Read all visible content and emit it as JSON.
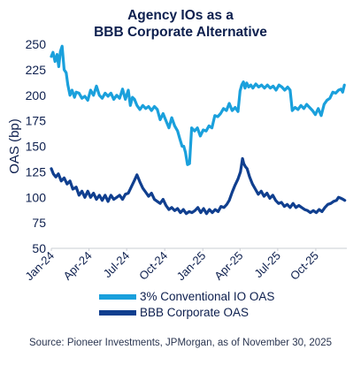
{
  "chart_data": {
    "type": "line",
    "title_lines": [
      "Agency IOs as a",
      "BBB Corporate Alternative"
    ],
    "ylabel": "OAS (bp)",
    "xlabel": "",
    "ylim": [
      50,
      250
    ],
    "yticks": [
      50,
      75,
      100,
      125,
      150,
      175,
      200,
      225,
      250
    ],
    "xlim": [
      "2024-01-01",
      "2025-12-15"
    ],
    "xtick_labels": [
      "Jan-24",
      "Apr-24",
      "Jul-24",
      "Oct-24",
      "Jan-25",
      "Apr-25",
      "Jul-25",
      "Oct-25"
    ],
    "xtick_dates": [
      "2024-01-01",
      "2024-04-01",
      "2024-07-01",
      "2024-10-01",
      "2025-01-01",
      "2025-04-01",
      "2025-07-01",
      "2025-10-01"
    ],
    "grid": false,
    "legend_position": "bottom",
    "source": "Source: Pioneer Investments, JPMorgan, as of November 30, 2025",
    "series": [
      {
        "name": "3% Conventional IO OAS",
        "color": "#1aa0dc",
        "points": [
          [
            "2024-01-01",
            238
          ],
          [
            "2024-01-05",
            242
          ],
          [
            "2024-01-10",
            233
          ],
          [
            "2024-01-15",
            240
          ],
          [
            "2024-01-19",
            228
          ],
          [
            "2024-01-23",
            243
          ],
          [
            "2024-01-27",
            248
          ],
          [
            "2024-02-01",
            225
          ],
          [
            "2024-02-06",
            222
          ],
          [
            "2024-02-10",
            210
          ],
          [
            "2024-02-15",
            200
          ],
          [
            "2024-02-20",
            205
          ],
          [
            "2024-02-26",
            198
          ],
          [
            "2024-03-01",
            203
          ],
          [
            "2024-03-08",
            202
          ],
          [
            "2024-03-15",
            197
          ],
          [
            "2024-03-22",
            199
          ],
          [
            "2024-03-29",
            195
          ],
          [
            "2024-04-05",
            205
          ],
          [
            "2024-04-12",
            200
          ],
          [
            "2024-04-19",
            209
          ],
          [
            "2024-04-26",
            200
          ],
          [
            "2024-05-03",
            197
          ],
          [
            "2024-05-10",
            202
          ],
          [
            "2024-05-17",
            199
          ],
          [
            "2024-05-24",
            202
          ],
          [
            "2024-05-31",
            196
          ],
          [
            "2024-06-07",
            200
          ],
          [
            "2024-06-14",
            197
          ],
          [
            "2024-06-21",
            206
          ],
          [
            "2024-06-28",
            196
          ],
          [
            "2024-07-05",
            205
          ],
          [
            "2024-07-10",
            190
          ],
          [
            "2024-07-15",
            198
          ],
          [
            "2024-07-20",
            196
          ],
          [
            "2024-07-26",
            190
          ],
          [
            "2024-08-02",
            186
          ],
          [
            "2024-08-09",
            190
          ],
          [
            "2024-08-16",
            187
          ],
          [
            "2024-08-23",
            189
          ],
          [
            "2024-08-30",
            185
          ],
          [
            "2024-09-06",
            189
          ],
          [
            "2024-09-13",
            186
          ],
          [
            "2024-09-20",
            176
          ],
          [
            "2024-09-27",
            182
          ],
          [
            "2024-10-04",
            175
          ],
          [
            "2024-10-11",
            168
          ],
          [
            "2024-10-18",
            178
          ],
          [
            "2024-10-25",
            170
          ],
          [
            "2024-11-01",
            165
          ],
          [
            "2024-11-06",
            158
          ],
          [
            "2024-11-12",
            150
          ],
          [
            "2024-11-16",
            150
          ],
          [
            "2024-11-20",
            144
          ],
          [
            "2024-11-25",
            132
          ],
          [
            "2024-11-30",
            133
          ],
          [
            "2024-12-05",
            168
          ],
          [
            "2024-12-12",
            165
          ],
          [
            "2024-12-19",
            168
          ],
          [
            "2024-12-26",
            160
          ],
          [
            "2025-01-02",
            166
          ],
          [
            "2025-01-09",
            165
          ],
          [
            "2025-01-16",
            170
          ],
          [
            "2025-01-23",
            168
          ],
          [
            "2025-01-30",
            180
          ],
          [
            "2025-02-06",
            179
          ],
          [
            "2025-02-13",
            182
          ],
          [
            "2025-02-20",
            187
          ],
          [
            "2025-02-27",
            185
          ],
          [
            "2025-03-06",
            192
          ],
          [
            "2025-03-13",
            185
          ],
          [
            "2025-03-20",
            188
          ],
          [
            "2025-03-27",
            184
          ],
          [
            "2025-04-01",
            204
          ],
          [
            "2025-04-05",
            210
          ],
          [
            "2025-04-09",
            213
          ],
          [
            "2025-04-13",
            207
          ],
          [
            "2025-04-17",
            212
          ],
          [
            "2025-04-22",
            208
          ],
          [
            "2025-04-27",
            210
          ],
          [
            "2025-05-02",
            207
          ],
          [
            "2025-05-09",
            211
          ],
          [
            "2025-05-16",
            208
          ],
          [
            "2025-05-23",
            210
          ],
          [
            "2025-05-30",
            207
          ],
          [
            "2025-06-06",
            210
          ],
          [
            "2025-06-13",
            207
          ],
          [
            "2025-06-20",
            209
          ],
          [
            "2025-06-27",
            205
          ],
          [
            "2025-07-04",
            210
          ],
          [
            "2025-07-11",
            208
          ],
          [
            "2025-07-18",
            205
          ],
          [
            "2025-07-25",
            208
          ],
          [
            "2025-07-31",
            205
          ],
          [
            "2025-08-05",
            185
          ],
          [
            "2025-08-12",
            188
          ],
          [
            "2025-08-19",
            186
          ],
          [
            "2025-08-26",
            190
          ],
          [
            "2025-09-02",
            187
          ],
          [
            "2025-09-09",
            191
          ],
          [
            "2025-09-16",
            188
          ],
          [
            "2025-09-23",
            185
          ],
          [
            "2025-09-30",
            181
          ],
          [
            "2025-10-07",
            187
          ],
          [
            "2025-10-14",
            180
          ],
          [
            "2025-10-21",
            191
          ],
          [
            "2025-10-28",
            195
          ],
          [
            "2025-11-04",
            197
          ],
          [
            "2025-11-11",
            203
          ],
          [
            "2025-11-18",
            202
          ],
          [
            "2025-11-25",
            205
          ],
          [
            "2025-12-01",
            206
          ],
          [
            "2025-12-05",
            203
          ],
          [
            "2025-12-09",
            210
          ]
        ]
      },
      {
        "name": "BBB Corporate OAS",
        "color": "#103f8f",
        "points": [
          [
            "2024-01-01",
            128
          ],
          [
            "2024-01-06",
            123
          ],
          [
            "2024-01-12",
            120
          ],
          [
            "2024-01-18",
            123
          ],
          [
            "2024-01-25",
            116
          ],
          [
            "2024-02-01",
            119
          ],
          [
            "2024-02-08",
            113
          ],
          [
            "2024-02-15",
            116
          ],
          [
            "2024-02-22",
            108
          ],
          [
            "2024-03-01",
            110
          ],
          [
            "2024-03-08",
            102
          ],
          [
            "2024-03-15",
            106
          ],
          [
            "2024-03-22",
            100
          ],
          [
            "2024-03-29",
            106
          ],
          [
            "2024-04-05",
            100
          ],
          [
            "2024-04-12",
            104
          ],
          [
            "2024-04-19",
            98
          ],
          [
            "2024-04-26",
            102
          ],
          [
            "2024-05-03",
            97
          ],
          [
            "2024-05-10",
            102
          ],
          [
            "2024-05-17",
            96
          ],
          [
            "2024-05-24",
            102
          ],
          [
            "2024-05-31",
            98
          ],
          [
            "2024-06-07",
            100
          ],
          [
            "2024-06-14",
            102
          ],
          [
            "2024-06-21",
            98
          ],
          [
            "2024-06-28",
            103
          ],
          [
            "2024-07-05",
            104
          ],
          [
            "2024-07-12",
            110
          ],
          [
            "2024-07-19",
            116
          ],
          [
            "2024-07-26",
            122
          ],
          [
            "2024-08-02",
            115
          ],
          [
            "2024-08-09",
            109
          ],
          [
            "2024-08-16",
            105
          ],
          [
            "2024-08-23",
            101
          ],
          [
            "2024-08-30",
            104
          ],
          [
            "2024-09-06",
            98
          ],
          [
            "2024-09-13",
            96
          ],
          [
            "2024-09-20",
            94
          ],
          [
            "2024-09-27",
            98
          ],
          [
            "2024-10-04",
            92
          ],
          [
            "2024-10-11",
            88
          ],
          [
            "2024-10-18",
            90
          ],
          [
            "2024-10-25",
            87
          ],
          [
            "2024-11-01",
            89
          ],
          [
            "2024-11-08",
            85
          ],
          [
            "2024-11-15",
            88
          ],
          [
            "2024-11-22",
            84
          ],
          [
            "2024-11-29",
            86
          ],
          [
            "2024-12-06",
            85
          ],
          [
            "2024-12-13",
            87
          ],
          [
            "2024-12-20",
            90
          ],
          [
            "2024-12-27",
            85
          ],
          [
            "2025-01-03",
            89
          ],
          [
            "2025-01-10",
            84
          ],
          [
            "2025-01-17",
            88
          ],
          [
            "2025-01-24",
            85
          ],
          [
            "2025-01-31",
            88
          ],
          [
            "2025-02-07",
            86
          ],
          [
            "2025-02-14",
            91
          ],
          [
            "2025-02-21",
            90
          ],
          [
            "2025-02-28",
            93
          ],
          [
            "2025-03-06",
            97
          ],
          [
            "2025-03-13",
            105
          ],
          [
            "2025-03-20",
            112
          ],
          [
            "2025-03-27",
            118
          ],
          [
            "2025-04-02",
            125
          ],
          [
            "2025-04-07",
            138
          ],
          [
            "2025-04-10",
            133
          ],
          [
            "2025-04-14",
            130
          ],
          [
            "2025-04-18",
            128
          ],
          [
            "2025-04-24",
            120
          ],
          [
            "2025-05-01",
            113
          ],
          [
            "2025-05-08",
            108
          ],
          [
            "2025-05-15",
            103
          ],
          [
            "2025-05-22",
            106
          ],
          [
            "2025-05-29",
            101
          ],
          [
            "2025-06-05",
            104
          ],
          [
            "2025-06-12",
            99
          ],
          [
            "2025-06-19",
            102
          ],
          [
            "2025-06-26",
            97
          ],
          [
            "2025-07-03",
            94
          ],
          [
            "2025-07-10",
            95
          ],
          [
            "2025-07-17",
            91
          ],
          [
            "2025-07-24",
            93
          ],
          [
            "2025-07-31",
            90
          ],
          [
            "2025-08-07",
            94
          ],
          [
            "2025-08-14",
            90
          ],
          [
            "2025-08-21",
            92
          ],
          [
            "2025-08-28",
            90
          ],
          [
            "2025-09-04",
            88
          ],
          [
            "2025-09-11",
            87
          ],
          [
            "2025-09-18",
            85
          ],
          [
            "2025-09-25",
            87
          ],
          [
            "2025-10-02",
            85
          ],
          [
            "2025-10-09",
            88
          ],
          [
            "2025-10-16",
            86
          ],
          [
            "2025-10-23",
            90
          ],
          [
            "2025-10-30",
            93
          ],
          [
            "2025-11-06",
            94
          ],
          [
            "2025-11-13",
            96
          ],
          [
            "2025-11-20",
            97
          ],
          [
            "2025-11-25",
            100
          ],
          [
            "2025-12-01",
            99
          ],
          [
            "2025-12-06",
            98
          ],
          [
            "2025-12-10",
            97
          ]
        ]
      }
    ]
  }
}
